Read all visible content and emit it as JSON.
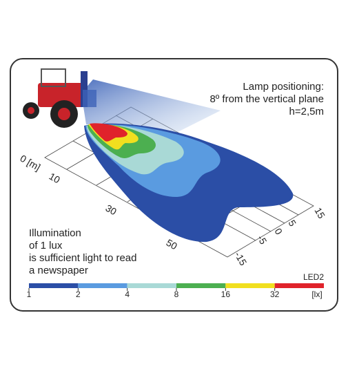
{
  "annotation": {
    "lines": [
      "Lamp positioning:",
      "8º from the vertical plane",
      "h=2,5m"
    ]
  },
  "note": {
    "lines": [
      "Illumination",
      "of 1 lux",
      "is sufficient light to read",
      "a newspaper"
    ]
  },
  "distance_axis": {
    "labels": [
      "0 [m]",
      "10",
      "30",
      "50"
    ]
  },
  "lateral_axis": {
    "labels": [
      "15",
      "5",
      "0",
      "-5",
      "-15"
    ]
  },
  "legend": {
    "title": "LED2",
    "ticks": [
      "1",
      "2",
      "4",
      "8",
      "16",
      "32"
    ],
    "unit": "[lx]",
    "colors": [
      "#2b4ea6",
      "#5a9be0",
      "#a9d9d6",
      "#4caf50",
      "#f1df1f",
      "#e0232b"
    ]
  }
}
